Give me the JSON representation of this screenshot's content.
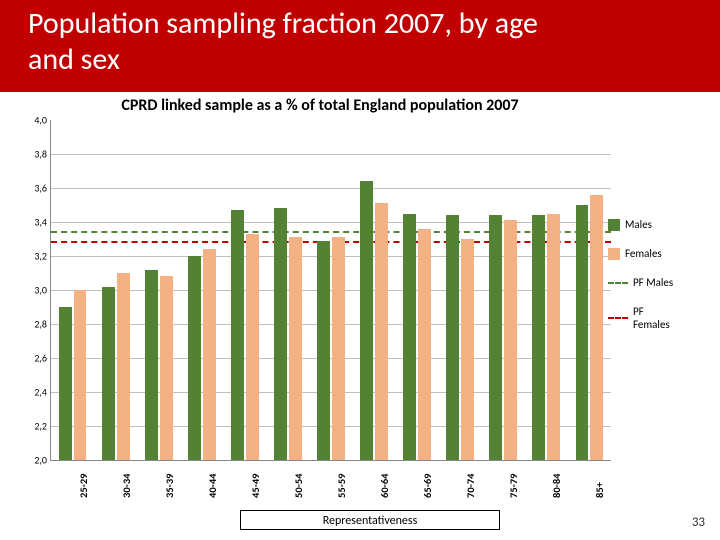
{
  "header": {
    "band_color": "#c00000",
    "title": "Population sampling fraction 2007, by age and sex"
  },
  "chart": {
    "type": "bar",
    "title": "CPRD linked sample  as a % of total England population 2007",
    "categories": [
      "25-29",
      "30-34",
      "35-39",
      "40-44",
      "45-49",
      "50-54",
      "55-59",
      "60-64",
      "65-69",
      "70-74",
      "75-79",
      "80-84",
      "85+"
    ],
    "series": {
      "males": {
        "label": "Males",
        "color": "#548235",
        "values": [
          2.9,
          3.02,
          3.12,
          3.2,
          3.47,
          3.48,
          3.29,
          3.64,
          3.45,
          3.44,
          3.44,
          3.44,
          3.5
        ]
      },
      "females": {
        "label": "Females",
        "color": "#f4b183",
        "values": [
          3.0,
          3.1,
          3.08,
          3.24,
          3.33,
          3.31,
          3.31,
          3.51,
          3.36,
          3.3,
          3.41,
          3.45,
          3.56
        ]
      }
    },
    "reference_lines": {
      "pf_males": {
        "label": "PF Males",
        "color": "#548235",
        "value": 3.35
      },
      "pf_females": {
        "label": "PF Females",
        "color": "#c00000",
        "value": 3.29
      }
    },
    "ylim": [
      2.0,
      4.0
    ],
    "ytick_step": 0.2,
    "grid_color": "#bfbfbf",
    "background_color": "#ffffff",
    "title_fontsize": 16,
    "title_fontweight": 700,
    "label_fontsize": 10,
    "label_fontweight": 700,
    "bar_width_ratio": 0.3,
    "legend_position": "right"
  },
  "footer": {
    "label": "Representativeness"
  },
  "page_number": "33"
}
